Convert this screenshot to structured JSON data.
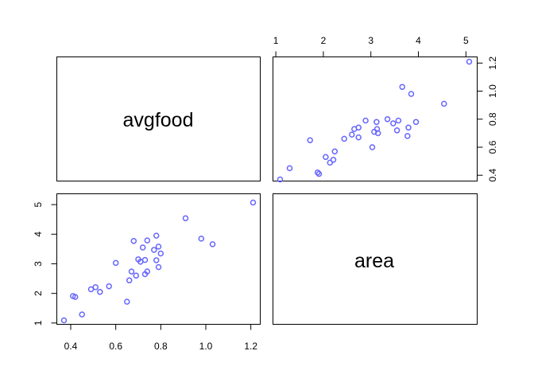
{
  "chart_data": {
    "type": "scatter",
    "kind": "pairs-scatterplot-matrix",
    "variables": [
      "avgfood",
      "area"
    ],
    "point_color": "#6666ff",
    "point_shape": "open-circle",
    "avgfood": [
      0.37,
      0.41,
      0.42,
      0.45,
      0.49,
      0.51,
      0.53,
      0.57,
      0.6,
      0.65,
      0.66,
      0.67,
      0.68,
      0.69,
      0.7,
      0.71,
      0.72,
      0.73,
      0.73,
      0.74,
      0.74,
      0.77,
      0.78,
      0.78,
      0.79,
      0.79,
      0.8,
      0.91,
      0.98,
      1.03,
      1.21
    ],
    "area": [
      1.09,
      1.91,
      1.88,
      1.29,
      2.14,
      2.21,
      2.05,
      2.24,
      3.03,
      1.72,
      2.44,
      2.74,
      3.77,
      2.6,
      3.15,
      3.07,
      3.55,
      2.65,
      3.13,
      3.79,
      2.74,
      3.47,
      3.95,
      3.12,
      3.58,
      2.89,
      3.35,
      4.54,
      3.85,
      3.66,
      5.07
    ],
    "axis_ranges": {
      "avgfood": [
        0.37,
        1.21
      ],
      "area": [
        1.09,
        5.07
      ]
    },
    "ticks": {
      "avgfood": [
        "0.4",
        "0.6",
        "0.8",
        "1.0",
        "1.2"
      ],
      "area": [
        "1",
        "2",
        "3",
        "4",
        "5"
      ]
    },
    "grid": false,
    "legend": "none",
    "title": "",
    "xlabel": "",
    "ylabel": ""
  }
}
